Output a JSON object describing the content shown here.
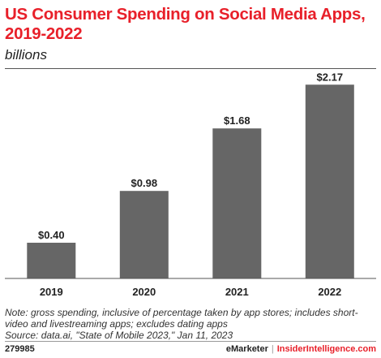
{
  "title": "US Consumer Spending on Social Media Apps, 2019-2022",
  "subtitle": "billions",
  "chart_data": {
    "type": "bar",
    "categories": [
      "2019",
      "2020",
      "2021",
      "2022"
    ],
    "values": [
      0.4,
      0.98,
      1.68,
      2.17
    ],
    "value_labels": [
      "$0.40",
      "$0.98",
      "$1.68",
      "$2.17"
    ],
    "ylim": [
      0,
      2.3
    ],
    "grid": false,
    "bar_color": "#666666"
  },
  "notes": {
    "note": "Note: gross spending, inclusive of percentage taken by app stores; includes short-video and livestreaming apps; excludes dating apps",
    "source": "Source: data.ai, \"State of Mobile 2023,\" Jan 11, 2023"
  },
  "footer": {
    "id": "279985",
    "brand_left": "eMarketer",
    "separator": "|",
    "brand_right": "InsiderIntelligence.com"
  },
  "colors": {
    "accent": "#e8202a",
    "bar": "#666666"
  }
}
